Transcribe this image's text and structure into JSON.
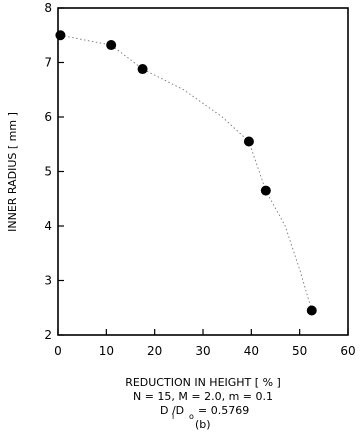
{
  "chart_data": {
    "type": "scatter",
    "xlabel": "REDUCTION IN HEIGHT [ % ]",
    "ylabel": "INNER RADIUS [ mm ]",
    "xlim": [
      0,
      60
    ],
    "ylim": [
      2,
      8
    ],
    "x_ticks": [
      0,
      10,
      20,
      30,
      40,
      50,
      60
    ],
    "y_ticks": [
      2,
      3,
      4,
      5,
      6,
      7,
      8
    ],
    "grid": false,
    "series": [
      {
        "x": [
          0.5,
          11,
          17.5,
          39.5,
          43,
          52.5
        ],
        "y": [
          7.5,
          7.32,
          6.88,
          5.55,
          4.65,
          2.45
        ]
      }
    ],
    "curve": {
      "x": [
        0.5,
        11,
        17.5,
        26,
        34,
        39.5,
        43,
        47,
        50,
        52.5
      ],
      "y": [
        7.5,
        7.32,
        6.88,
        6.5,
        6.0,
        5.55,
        4.65,
        4.0,
        3.2,
        2.45
      ]
    },
    "caption": {
      "line1": "N = 15, M = 2.0, m = 0.1",
      "ratio_main": "D /D",
      "ratio_sub_i": "i",
      "ratio_sub_o": "o",
      "ratio_value": "= 0.5769",
      "panel": "(b)"
    }
  }
}
